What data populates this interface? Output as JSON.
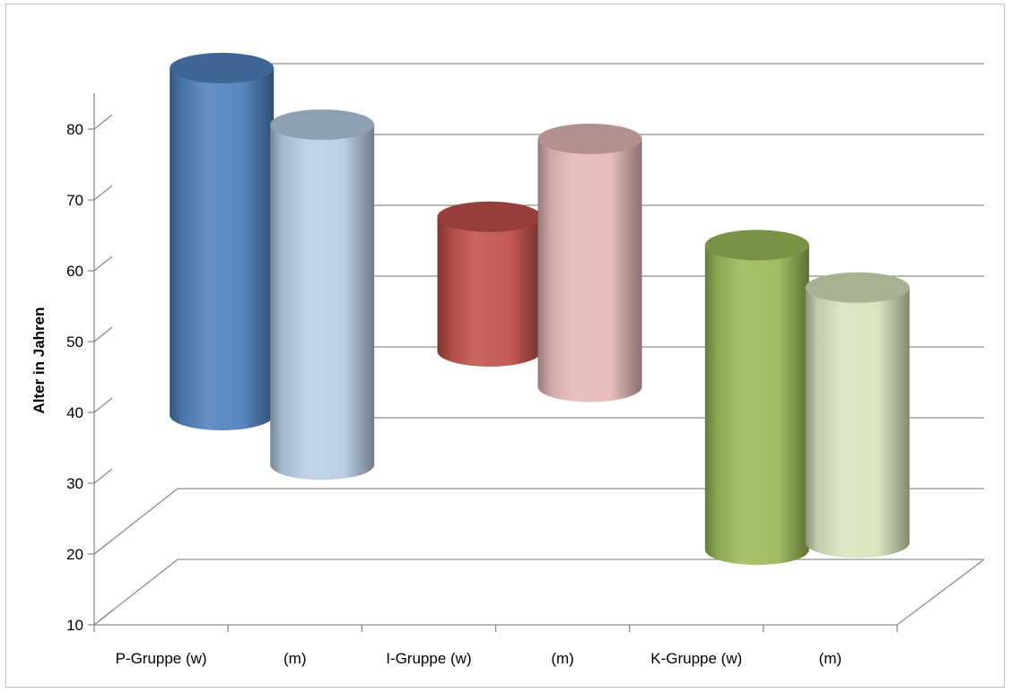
{
  "chart_data": {
    "type": "bar",
    "variant": "3d-floating-cylinder",
    "title": "",
    "xlabel": "",
    "ylabel": "Alter in Jahren",
    "ylim": [
      10,
      80
    ],
    "yticks": [
      10,
      20,
      30,
      40,
      50,
      60,
      70,
      80
    ],
    "grid": true,
    "categories": [
      "P-Gruppe (w)",
      "(m)",
      "I-Gruppe (w)",
      "(m)",
      "K-Gruppe (w)",
      "(m)"
    ],
    "ranges": [
      {
        "low": 35,
        "high": 84
      },
      {
        "low": 28,
        "high": 76
      },
      {
        "low": 44,
        "high": 63
      },
      {
        "low": 39,
        "high": 74
      },
      {
        "low": 16,
        "high": 59
      },
      {
        "low": 17,
        "high": 53
      }
    ],
    "colors": [
      "#4f81bd",
      "#b9cde5",
      "#c0504d",
      "#e6b9b8",
      "#9bbb59",
      "#d7e4bd"
    ]
  }
}
